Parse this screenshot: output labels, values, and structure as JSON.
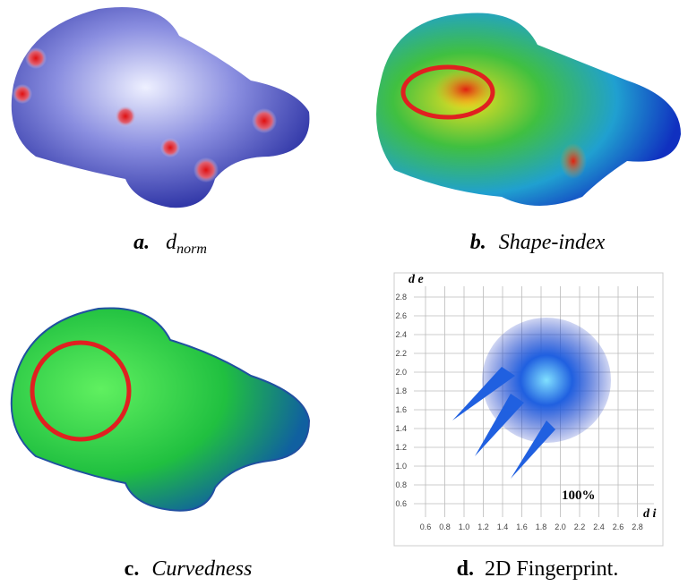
{
  "panels": [
    {
      "label": "a.",
      "title": "d",
      "subscript": "norm"
    },
    {
      "label": "b.",
      "title": "Shape-index"
    },
    {
      "label": "c.",
      "title": "Curvedness"
    },
    {
      "label": "d.",
      "title": "2D Fingerprint."
    }
  ],
  "fingerprint": {
    "x_label": "d i",
    "y_label": "d e",
    "annotation": "100%",
    "xticks": [
      0.6,
      0.8,
      {
        "value": 1,
        "label": "1.0"
      },
      1.2,
      1.4,
      1.6,
      1.8,
      {
        "value": 2,
        "label": "2.0"
      },
      2.2,
      2.4,
      2.6,
      2.8
    ],
    "yticks": [
      0.6,
      0.8,
      {
        "value": 1,
        "label": "1.0"
      },
      1.2,
      1.4,
      1.6,
      1.8,
      {
        "value": 2,
        "label": "2.0"
      },
      2.2,
      2.4,
      2.6,
      2.8
    ]
  }
}
